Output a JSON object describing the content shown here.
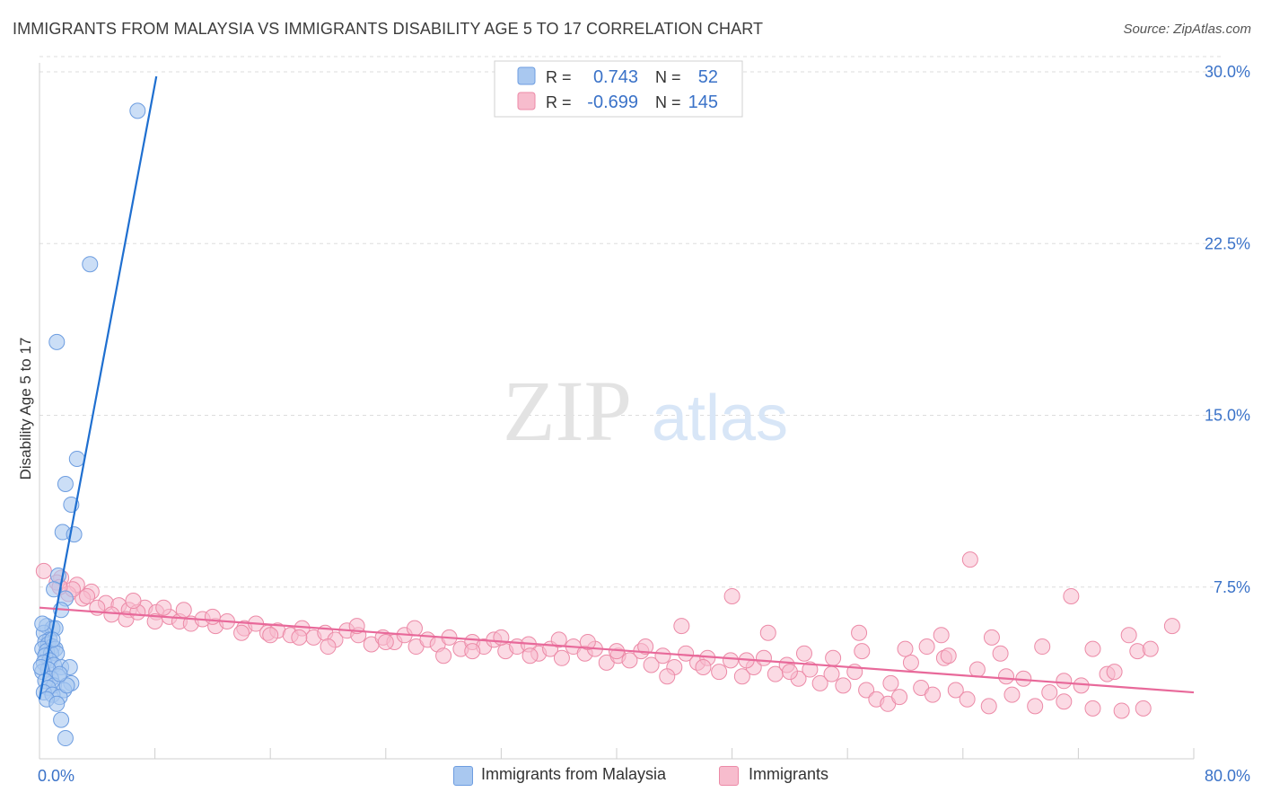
{
  "title": "IMMIGRANTS FROM MALAYSIA VS IMMIGRANTS DISABILITY AGE 5 TO 17 CORRELATION CHART",
  "source": "Source: ZipAtlas.com",
  "watermark": {
    "zip": "ZIP",
    "atlas": "atlas"
  },
  "colors": {
    "blue_fill": "#a9c8f0",
    "blue_stroke": "#6d9de0",
    "blue_line": "#1f6fd0",
    "pink_fill": "#f7bccd",
    "pink_stroke": "#ec8aa7",
    "pink_line": "#e8699a",
    "axis_label": "#3a72c8"
  },
  "stats_box": {
    "rows": [
      {
        "r_label": "R =",
        "r_value": "0.743",
        "n_label": "N =",
        "n_value": "52",
        "swatch": "blue"
      },
      {
        "r_label": "R =",
        "r_value": "-0.699",
        "n_label": "N =",
        "n_value": "145",
        "swatch": "pink"
      }
    ]
  },
  "legend": [
    {
      "label": "Immigrants from Malaysia",
      "swatch": "blue"
    },
    {
      "label": "Immigrants",
      "swatch": "pink"
    }
  ],
  "chart_data": {
    "type": "scatter",
    "title": "IMMIGRANTS FROM MALAYSIA VS IMMIGRANTS DISABILITY AGE 5 TO 17 CORRELATION CHART",
    "xlabel": "",
    "ylabel": "Disability Age 5 to 17",
    "xlim": [
      0,
      80
    ],
    "ylim": [
      0,
      31
    ],
    "x_tick_labels": [
      {
        "value": 0,
        "label": "0.0%"
      },
      {
        "value": 80,
        "label": "80.0%"
      }
    ],
    "y_tick_labels": [
      {
        "value": 7.5,
        "label": "7.5%"
      },
      {
        "value": 15,
        "label": "15.0%"
      },
      {
        "value": 22.5,
        "label": "22.5%"
      },
      {
        "value": 30,
        "label": "30.0%"
      }
    ],
    "grid": true,
    "legend_position": "bottom-center",
    "series": [
      {
        "name": "Immigrants from Malaysia",
        "color": "#a9c8f0",
        "trendline": {
          "x": [
            0,
            8.1
          ],
          "y": [
            2.6,
            29.8
          ]
        },
        "points": [
          [
            6.8,
            28.3
          ],
          [
            3.5,
            21.6
          ],
          [
            1.2,
            18.2
          ],
          [
            2.6,
            13.1
          ],
          [
            1.8,
            12.0
          ],
          [
            2.2,
            11.1
          ],
          [
            1.6,
            9.9
          ],
          [
            2.4,
            9.8
          ],
          [
            1.3,
            8.0
          ],
          [
            1.0,
            7.4
          ],
          [
            1.8,
            7.0
          ],
          [
            1.5,
            6.5
          ],
          [
            0.5,
            5.8
          ],
          [
            0.9,
            5.7
          ],
          [
            1.1,
            5.7
          ],
          [
            0.3,
            5.5
          ],
          [
            0.7,
            5.2
          ],
          [
            0.4,
            5.1
          ],
          [
            0.6,
            5.0
          ],
          [
            0.9,
            4.9
          ],
          [
            1.1,
            4.8
          ],
          [
            0.2,
            4.8
          ],
          [
            0.5,
            4.7
          ],
          [
            0.8,
            4.6
          ],
          [
            1.2,
            4.6
          ],
          [
            0.4,
            4.5
          ],
          [
            0.7,
            4.3
          ],
          [
            0.3,
            4.2
          ],
          [
            1.0,
            4.1
          ],
          [
            1.5,
            4.0
          ],
          [
            2.1,
            4.0
          ],
          [
            0.6,
            3.9
          ],
          [
            0.2,
            3.8
          ],
          [
            1.3,
            3.6
          ],
          [
            0.8,
            3.5
          ],
          [
            0.4,
            3.4
          ],
          [
            2.2,
            3.3
          ],
          [
            1.0,
            3.2
          ],
          [
            0.6,
            3.1
          ],
          [
            1.7,
            3.0
          ],
          [
            0.3,
            2.9
          ],
          [
            0.9,
            2.8
          ],
          [
            1.4,
            2.7
          ],
          [
            0.5,
            2.6
          ],
          [
            1.2,
            2.4
          ],
          [
            1.5,
            1.7
          ],
          [
            1.8,
            0.9
          ],
          [
            0.2,
            5.9
          ],
          [
            0.1,
            4.0
          ],
          [
            1.9,
            3.2
          ],
          [
            1.4,
            3.7
          ],
          [
            0.9,
            5.2
          ]
        ]
      },
      {
        "name": "Immigrants",
        "color": "#f7bccd",
        "trendline": {
          "x": [
            0,
            80
          ],
          "y": [
            6.6,
            2.9
          ]
        },
        "points": [
          [
            0.3,
            8.2
          ],
          [
            1.5,
            7.9
          ],
          [
            2.6,
            7.6
          ],
          [
            3.6,
            7.3
          ],
          [
            1.2,
            7.7
          ],
          [
            2.0,
            7.2
          ],
          [
            3.0,
            7.0
          ],
          [
            4.6,
            6.8
          ],
          [
            5.5,
            6.7
          ],
          [
            6.2,
            6.5
          ],
          [
            7.3,
            6.6
          ],
          [
            8.1,
            6.4
          ],
          [
            9.0,
            6.2
          ],
          [
            5.0,
            6.3
          ],
          [
            6.0,
            6.1
          ],
          [
            6.8,
            6.4
          ],
          [
            8.6,
            6.6
          ],
          [
            9.7,
            6.0
          ],
          [
            10.5,
            5.9
          ],
          [
            11.3,
            6.1
          ],
          [
            12.2,
            5.8
          ],
          [
            13.0,
            6.0
          ],
          [
            14.2,
            5.7
          ],
          [
            15.0,
            5.9
          ],
          [
            15.8,
            5.5
          ],
          [
            16.5,
            5.6
          ],
          [
            17.4,
            5.4
          ],
          [
            18.2,
            5.7
          ],
          [
            19.0,
            5.3
          ],
          [
            19.8,
            5.5
          ],
          [
            20.5,
            5.2
          ],
          [
            21.3,
            5.6
          ],
          [
            22.1,
            5.4
          ],
          [
            23.0,
            5.0
          ],
          [
            23.8,
            5.3
          ],
          [
            24.6,
            5.1
          ],
          [
            25.3,
            5.4
          ],
          [
            26.1,
            4.9
          ],
          [
            26.9,
            5.2
          ],
          [
            27.6,
            5.0
          ],
          [
            28.4,
            5.3
          ],
          [
            29.2,
            4.8
          ],
          [
            30.0,
            5.1
          ],
          [
            30.8,
            4.9
          ],
          [
            31.5,
            5.2
          ],
          [
            32.3,
            4.7
          ],
          [
            33.1,
            4.9
          ],
          [
            33.9,
            5.0
          ],
          [
            34.6,
            4.6
          ],
          [
            35.4,
            4.8
          ],
          [
            36.2,
            4.4
          ],
          [
            37.0,
            4.9
          ],
          [
            37.8,
            4.6
          ],
          [
            38.5,
            4.8
          ],
          [
            39.3,
            4.2
          ],
          [
            40.1,
            4.5
          ],
          [
            40.9,
            4.3
          ],
          [
            41.7,
            4.7
          ],
          [
            42.4,
            4.1
          ],
          [
            43.2,
            4.5
          ],
          [
            44.0,
            4.0
          ],
          [
            44.8,
            4.6
          ],
          [
            45.6,
            4.2
          ],
          [
            46.3,
            4.4
          ],
          [
            47.1,
            3.8
          ],
          [
            47.9,
            4.3
          ],
          [
            48.7,
            3.6
          ],
          [
            49.5,
            4.0
          ],
          [
            50.2,
            4.4
          ],
          [
            51.0,
            3.7
          ],
          [
            51.8,
            4.1
          ],
          [
            52.6,
            3.5
          ],
          [
            53.4,
            3.9
          ],
          [
            54.1,
            3.3
          ],
          [
            54.9,
            3.7
          ],
          [
            55.7,
            3.2
          ],
          [
            56.5,
            3.8
          ],
          [
            57.3,
            3.0
          ],
          [
            58.0,
            2.6
          ],
          [
            58.8,
            2.4
          ],
          [
            59.6,
            2.7
          ],
          [
            60.4,
            4.2
          ],
          [
            61.1,
            3.1
          ],
          [
            61.9,
            2.8
          ],
          [
            62.7,
            4.4
          ],
          [
            63.5,
            3.0
          ],
          [
            64.3,
            2.6
          ],
          [
            65.0,
            3.9
          ],
          [
            65.8,
            2.3
          ],
          [
            66.6,
            4.6
          ],
          [
            67.4,
            2.8
          ],
          [
            68.2,
            3.5
          ],
          [
            69.0,
            2.3
          ],
          [
            70.0,
            2.9
          ],
          [
            71.0,
            2.5
          ],
          [
            72.2,
            3.2
          ],
          [
            73.0,
            2.2
          ],
          [
            74.0,
            3.7
          ],
          [
            75.0,
            2.1
          ],
          [
            76.1,
            4.7
          ],
          [
            77.0,
            4.8
          ],
          [
            78.5,
            5.8
          ],
          [
            64.5,
            8.7
          ],
          [
            71.5,
            7.1
          ],
          [
            48.0,
            7.1
          ],
          [
            44.5,
            5.8
          ],
          [
            50.5,
            5.5
          ],
          [
            56.8,
            5.5
          ],
          [
            60.0,
            4.8
          ],
          [
            61.5,
            4.9
          ],
          [
            62.5,
            5.4
          ],
          [
            66.0,
            5.3
          ],
          [
            69.5,
            4.9
          ],
          [
            73.0,
            4.8
          ],
          [
            75.5,
            5.4
          ],
          [
            42.0,
            4.9
          ],
          [
            40.0,
            4.7
          ],
          [
            38.0,
            5.1
          ],
          [
            36.0,
            5.2
          ],
          [
            34.0,
            4.5
          ],
          [
            32.0,
            5.3
          ],
          [
            30.0,
            4.7
          ],
          [
            28.0,
            4.5
          ],
          [
            26.0,
            5.7
          ],
          [
            24.0,
            5.1
          ],
          [
            22.0,
            5.8
          ],
          [
            20.0,
            4.9
          ],
          [
            18.0,
            5.3
          ],
          [
            16.0,
            5.4
          ],
          [
            14.0,
            5.5
          ],
          [
            12.0,
            6.2
          ],
          [
            10.0,
            6.5
          ],
          [
            8.0,
            6.0
          ],
          [
            6.5,
            6.9
          ],
          [
            4.0,
            6.6
          ],
          [
            3.3,
            7.1
          ],
          [
            2.3,
            7.4
          ],
          [
            57.0,
            4.7
          ],
          [
            53.0,
            4.6
          ],
          [
            49.0,
            4.3
          ],
          [
            46.0,
            4.0
          ],
          [
            43.5,
            3.6
          ],
          [
            52.0,
            3.8
          ],
          [
            55.0,
            4.4
          ],
          [
            59.0,
            3.3
          ],
          [
            63.0,
            4.5
          ],
          [
            67.0,
            3.6
          ],
          [
            71.0,
            3.4
          ],
          [
            74.5,
            3.8
          ],
          [
            76.5,
            2.2
          ],
          [
            1.4,
            7.5
          ]
        ]
      }
    ]
  }
}
